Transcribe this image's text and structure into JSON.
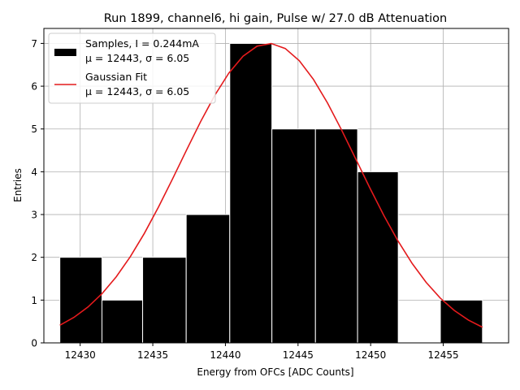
{
  "chart_data": {
    "type": "bar",
    "title": "Run 1899, channel6, hi gain, Pulse w/ 27.0 dB Attenuation",
    "xlabel": "Energy from OFCs [ADC Counts]",
    "ylabel": "Entries",
    "xlim": [
      12427.5,
      12459.5
    ],
    "ylim": [
      0,
      7.35
    ],
    "xticks": [
      12430,
      12435,
      12440,
      12445,
      12450,
      12455
    ],
    "yticks": [
      0,
      1,
      2,
      3,
      4,
      5,
      6,
      7
    ],
    "grid": true,
    "legend_position": "top-left",
    "histogram": {
      "name": "Samples, I = 0.244mA",
      "stats": "μ = 12443, σ = 6.05",
      "color": "#000000",
      "edge_color": "#ffffff",
      "bins": [
        {
          "x0": 12428.6,
          "x1": 12431.5,
          "count": 2
        },
        {
          "x0": 12431.5,
          "x1": 12434.3,
          "count": 1
        },
        {
          "x0": 12434.3,
          "x1": 12437.3,
          "count": 2
        },
        {
          "x0": 12437.3,
          "x1": 12440.3,
          "count": 3
        },
        {
          "x0": 12440.3,
          "x1": 12443.2,
          "count": 7
        },
        {
          "x0": 12443.2,
          "x1": 12446.2,
          "count": 5
        },
        {
          "x0": 12446.2,
          "x1": 12449.1,
          "count": 5
        },
        {
          "x0": 12449.1,
          "x1": 12451.9,
          "count": 4
        },
        {
          "x0": 12451.9,
          "x1": 12454.8,
          "count": 0
        },
        {
          "x0": 12454.8,
          "x1": 12457.7,
          "count": 1
        }
      ]
    },
    "fit": {
      "name": "Gaussian Fit",
      "stats": "μ = 12443, σ = 6.05",
      "color": "#e41a1c",
      "amplitude": 7.0,
      "mean": 12443,
      "sigma": 6.05,
      "x_range": [
        12428.6,
        12457.7
      ]
    }
  }
}
